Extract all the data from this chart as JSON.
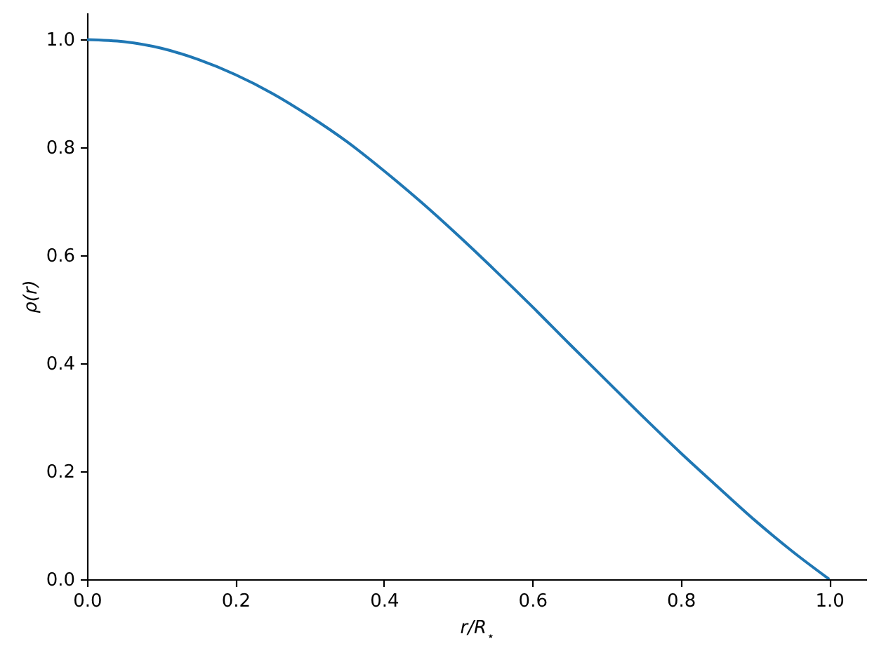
{
  "chart_data": {
    "type": "line",
    "xlabel": "r/R$_{⋆}$",
    "ylabel": "ρ(r)",
    "x": [
      0,
      0.05,
      0.1,
      0.15,
      0.2,
      0.25,
      0.3,
      0.35,
      0.4,
      0.45,
      0.5,
      0.55,
      0.6,
      0.65,
      0.7,
      0.75,
      0.8,
      0.85,
      0.9,
      0.95,
      1.0
    ],
    "series": [
      {
        "color": "#1f77b4",
        "values": [
          1.0,
          0.996,
          0.984,
          0.963,
          0.935,
          0.9,
          0.858,
          0.811,
          0.757,
          0.699,
          0.637,
          0.572,
          0.505,
          0.436,
          0.368,
          0.3,
          0.234,
          0.171,
          0.109,
          0.052,
          0.0
        ]
      }
    ],
    "xlim": [
      0,
      1.05
    ],
    "ylim": [
      0,
      1.05
    ],
    "xticks": [
      {
        "value": 0,
        "label": "0.0"
      },
      0.2,
      0.4,
      0.6,
      0.8,
      {
        "value": 1,
        "label": "1.0"
      }
    ],
    "yticks": [
      {
        "value": 0,
        "label": "0.0"
      },
      0.2,
      0.4,
      0.6,
      0.8,
      {
        "value": 1,
        "label": "1.0"
      }
    ]
  }
}
